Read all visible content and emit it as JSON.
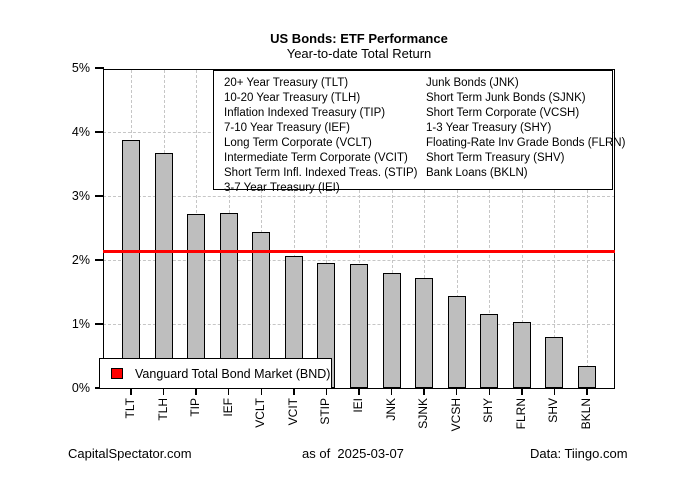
{
  "header": {
    "title": "US Bonds: ETF Performance",
    "subtitle": "Year-to-date Total Return"
  },
  "chart_data": {
    "type": "bar",
    "categories": [
      "TLT",
      "TLH",
      "TIP",
      "IEF",
      "VCLT",
      "VCIT",
      "STIP",
      "IEI",
      "JNK",
      "SJNK",
      "VCSH",
      "SHY",
      "FLRN",
      "SHV",
      "BKLN"
    ],
    "values": [
      3.88,
      3.67,
      2.72,
      2.73,
      2.44,
      2.07,
      1.95,
      1.94,
      1.79,
      1.72,
      1.43,
      1.15,
      1.03,
      0.8,
      0.34
    ],
    "title": "US Bonds: ETF Performance",
    "subtitle": "Year-to-date Total Return",
    "xlabel": "",
    "ylabel": "",
    "ylim": [
      0,
      5
    ],
    "yticks": [
      0,
      1,
      2,
      3,
      4,
      5
    ],
    "ytick_labels": [
      "0%",
      "1%",
      "2%",
      "3%",
      "4%",
      "5%"
    ],
    "grid": true,
    "bar_color": "#bebebe",
    "bar_border_color": "#000000",
    "reference_line": {
      "value": 2.14,
      "color": "#ff0000",
      "label": "Vanguard Total Bond Market (BND)"
    },
    "legend": {
      "left_column": [
        "20+ Year Treasury (TLT)",
        "10-20 Year Treasury (TLH)",
        "Inflation Indexed Treasury (TIP)",
        "7-10 Year Treasury (IEF)",
        "Long Term Corporate (VCLT)",
        "Intermediate Term Corporate (VCIT)",
        "Short Term Infl. Indexed Treas. (STIP)",
        "3-7 Year Treasury (IEI)"
      ],
      "right_column": [
        "Junk Bonds (JNK)",
        "Short Term Junk Bonds (SJNK)",
        "Short Term Corporate (VCSH)",
        "1-3 Year Treasury (SHY)",
        "Floating-Rate Inv Grade Bonds (FLRN)",
        "Short Term Treasury (SHV)",
        "Bank Loans (BKLN)"
      ]
    }
  },
  "footer": {
    "left": "CapitalSpectator.com",
    "center": "as of  2025-03-07",
    "right": "Data: Tiingo.com"
  }
}
